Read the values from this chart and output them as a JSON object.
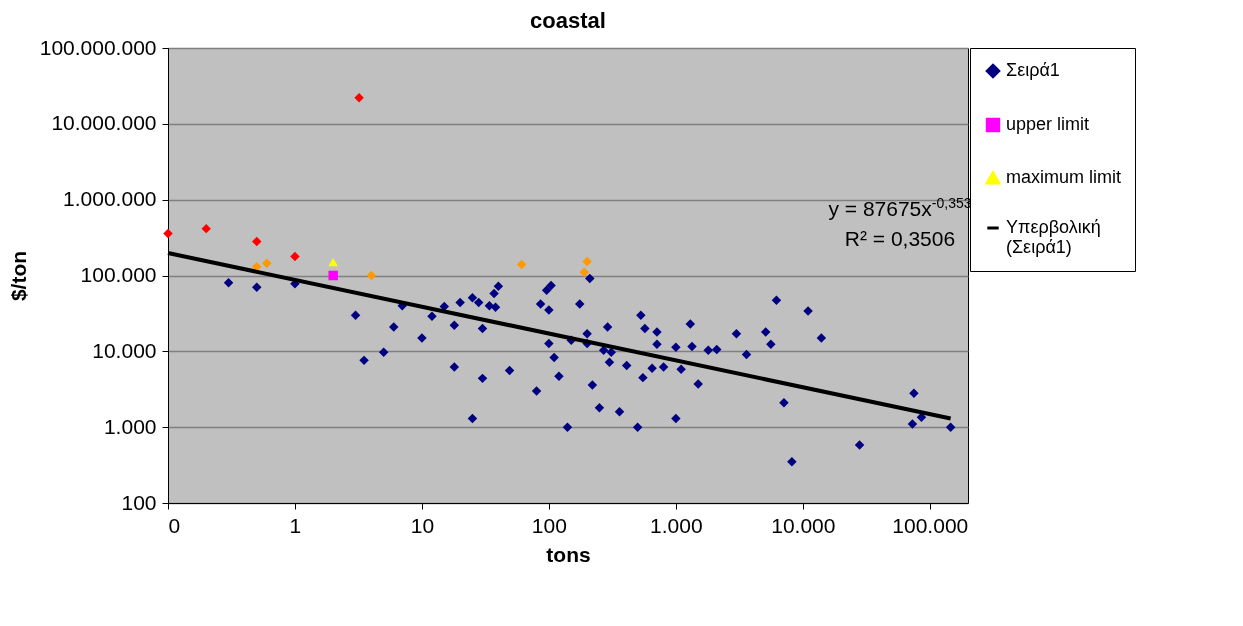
{
  "chart_data": {
    "type": "scatter",
    "title": "coastal",
    "xlabel": "tons",
    "ylabel": "$/ton",
    "log": "xy",
    "grid": "y",
    "legend": "right",
    "xlim": [
      0.1,
      200000
    ],
    "ylim": [
      100,
      100000000
    ],
    "xticks": [
      {
        "value": 0.1,
        "label": "0"
      },
      1,
      10,
      100,
      {
        "value": 1000,
        "label": "1.000"
      },
      {
        "value": 10000,
        "label": "10.000"
      },
      {
        "value": 100000,
        "label": "100.000"
      }
    ],
    "yticks": [
      100,
      {
        "value": 1000,
        "label": "1.000"
      },
      {
        "value": 10000,
        "label": "10.000"
      },
      {
        "value": 100000,
        "label": "100.000"
      },
      {
        "value": 1000000,
        "label": "1.000.000"
      },
      {
        "value": 10000000,
        "label": "10.000.000"
      },
      {
        "value": 100000000,
        "label": "100.000.000"
      }
    ],
    "annotations": [
      "y = 87675x$^{-0,353}$",
      "R² = 0,3506"
    ],
    "series": [
      {
        "name": "Σειρά1",
        "marker": "diamond",
        "color": "#000080",
        "x": [
          0.3,
          0.5,
          1,
          3,
          3.5,
          5,
          6,
          7,
          10,
          12,
          15,
          18,
          18,
          20,
          25,
          25,
          28,
          30,
          30,
          34,
          38,
          37,
          40,
          49,
          80,
          86,
          100,
          96,
          104,
          100,
          110,
          120,
          140,
          150,
          175,
          200,
          200,
          210,
          220,
          250,
          270,
          290,
          300,
          310,
          360,
          410,
          500,
          530,
          550,
          570,
          650,
          710,
          710,
          800,
          1000,
          1000,
          1100,
          1300,
          1340,
          1500,
          1800,
          2100,
          3000,
          3600,
          5100,
          5600,
          6200,
          7100,
          8200,
          11000,
          14000,
          28000,
          75000,
          73000,
          86000,
          146000
        ],
        "values": [
          80000,
          70000,
          78000,
          30000,
          7600,
          9700,
          21000,
          40000,
          15000,
          29000,
          39000,
          22000,
          6200,
          44000,
          51000,
          1300,
          44000,
          20000,
          4400,
          40000,
          38000,
          58000,
          72000,
          5600,
          3000,
          42000,
          35000,
          64000,
          74000,
          12700,
          8300,
          4700,
          1000,
          14000,
          42000,
          17000,
          12700,
          91000,
          3600,
          1800,
          10300,
          21000,
          7200,
          9700,
          1600,
          6500,
          1000,
          30000,
          4500,
          20000,
          6000,
          18000,
          12400,
          6200,
          11300,
          1300,
          5800,
          23000,
          11600,
          3700,
          10300,
          10600,
          17000,
          9100,
          18000,
          12400,
          47000,
          2100,
          350,
          34000,
          15000,
          580,
          2800,
          1100,
          1350,
          1000
        ]
      },
      {
        "marker": "diamond",
        "color": "#ff0000",
        "x": [
          0.1,
          0.2,
          0.5,
          1,
          3.2
        ],
        "values": [
          357000,
          415000,
          280000,
          178000,
          22000000
        ]
      },
      {
        "marker": "diamond",
        "color": "#ff9900",
        "x": [
          0.5,
          0.6,
          4,
          61,
          190,
          200
        ],
        "values": [
          130000,
          145000,
          100000,
          140000,
          110000,
          153000
        ]
      },
      {
        "name": "upper limit",
        "marker": "square",
        "color": "#ff00ff",
        "x": [
          2
        ],
        "values": [
          100000
        ]
      },
      {
        "name": "maximum limit",
        "marker": "triangle",
        "color": "#ffff00",
        "x": [
          2
        ],
        "values": [
          150000
        ]
      },
      {
        "name": "Υπερβολική (Σειρά1)",
        "type": "line",
        "marker": "none",
        "color": "#000000",
        "x": [
          0.1,
          146000
        ],
        "values": [
          198000,
          1300
        ]
      }
    ]
  }
}
